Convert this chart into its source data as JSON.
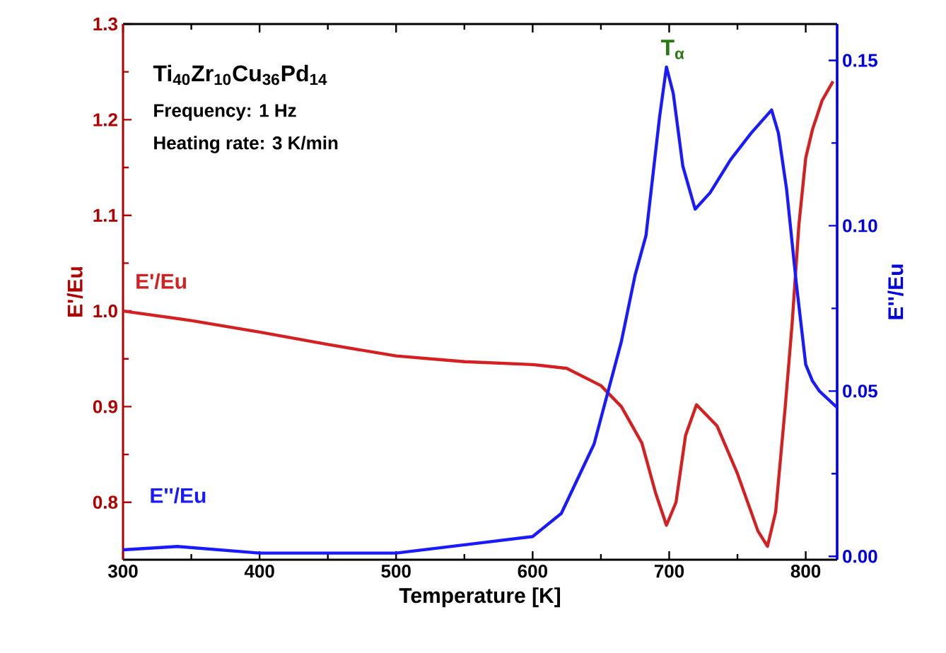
{
  "chart_data": {
    "type": "line",
    "xlabel": "Temperature [K]",
    "ylabel": "E'/Eu",
    "y2label": "E''/Eu",
    "xlim": [
      300,
      823
    ],
    "xticks": [
      300,
      400,
      500,
      600,
      700,
      800
    ],
    "ylim": [
      0.74,
      1.3
    ],
    "yticks": [
      {
        "value": 0.8,
        "label": "0.8"
      },
      {
        "value": 0.9,
        "label": "0.9"
      },
      {
        "value": 1.0,
        "label": "1.0"
      },
      {
        "value": 1.1,
        "label": "1.1"
      },
      {
        "value": 1.2,
        "label": "1.2"
      },
      {
        "value": 1.3,
        "label": "1.3"
      }
    ],
    "y2lim": [
      -0.001,
      0.161
    ],
    "y2ticks": [
      {
        "value": 0,
        "label": "0.00"
      },
      {
        "value": 0.05,
        "label": "0.05"
      },
      {
        "value": 0.1,
        "label": "0.10"
      },
      {
        "value": 0.15,
        "label": "0.15"
      }
    ],
    "series": [
      {
        "name": "E'/Eu",
        "color": "#d42020",
        "x": [
          300,
          350,
          400,
          450,
          500,
          550,
          600,
          625,
          650,
          665,
          680,
          690,
          698,
          705,
          712,
          720,
          735,
          750,
          765,
          772,
          778,
          785,
          790,
          795,
          800,
          805,
          812,
          820
        ],
        "values": [
          1.0,
          0.99,
          0.978,
          0.965,
          0.953,
          0.947,
          0.944,
          0.94,
          0.922,
          0.9,
          0.862,
          0.81,
          0.776,
          0.8,
          0.87,
          0.902,
          0.88,
          0.83,
          0.77,
          0.754,
          0.79,
          0.9,
          0.986,
          1.09,
          1.16,
          1.19,
          1.22,
          1.24
        ]
      },
      {
        "name": "E''/Eu",
        "color": "#1a1aff",
        "axis": "y2",
        "x": [
          300,
          340,
          400,
          500,
          560,
          600,
          621,
          645,
          665,
          675,
          683,
          693,
          698,
          703,
          710,
          719,
          730,
          745,
          760,
          775,
          780,
          786,
          793,
          800,
          805,
          810,
          823
        ],
        "values": [
          0.002,
          0.003,
          0.001,
          0.001,
          0.004,
          0.006,
          0.013,
          0.034,
          0.065,
          0.085,
          0.097,
          0.133,
          0.148,
          0.14,
          0.118,
          0.105,
          0.11,
          0.12,
          0.128,
          0.135,
          0.128,
          0.111,
          0.083,
          0.058,
          0.053,
          0.05,
          0.045
        ]
      }
    ],
    "annotations": [
      "Ti$_{40}$Zr$_{10}$Cu$_{36}$Pd$_{14}$",
      "Frequency: 1 Hz",
      "Heating rate: 3 K/min",
      "T$_{α}$"
    ]
  }
}
